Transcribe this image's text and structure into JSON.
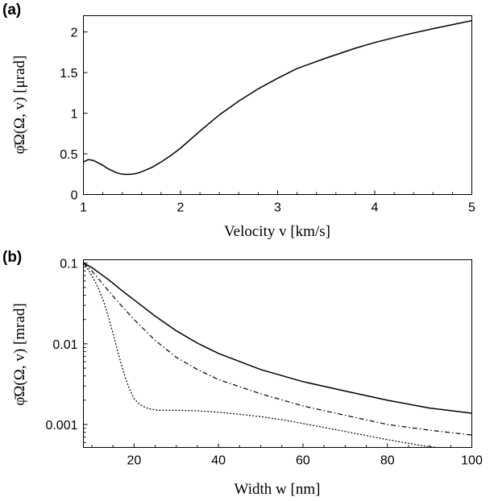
{
  "chart_data": [
    {
      "type": "line",
      "panel_label": "(a)",
      "xlabel": "Velocity v [km/s]",
      "ylabel": "φ̄Ω(Ω, v) [μrad]",
      "xlim": [
        1,
        5
      ],
      "ylim": [
        0,
        2.2
      ],
      "x_ticks": [
        1,
        2,
        3,
        4,
        5
      ],
      "x_tick_labels": [
        "1",
        "2",
        "3",
        "4",
        "5"
      ],
      "y_ticks": [
        0,
        0.5,
        1,
        1.5,
        2
      ],
      "y_tick_labels": [
        "0",
        "0.5",
        "1",
        "1.5",
        "2"
      ],
      "series": [
        {
          "style": "solid",
          "x": [
            1.0,
            1.05,
            1.1,
            1.15,
            1.2,
            1.25,
            1.3,
            1.35,
            1.4,
            1.45,
            1.5,
            1.55,
            1.6,
            1.7,
            1.8,
            1.9,
            2.0,
            2.2,
            2.4,
            2.6,
            2.8,
            3.0,
            3.2,
            3.5,
            3.8,
            4.0,
            4.3,
            4.6,
            5.0
          ],
          "y": [
            0.4,
            0.43,
            0.42,
            0.39,
            0.36,
            0.32,
            0.29,
            0.265,
            0.25,
            0.248,
            0.25,
            0.26,
            0.28,
            0.33,
            0.4,
            0.48,
            0.57,
            0.78,
            0.98,
            1.15,
            1.3,
            1.43,
            1.55,
            1.68,
            1.8,
            1.87,
            1.96,
            2.04,
            2.14
          ]
        }
      ]
    },
    {
      "type": "line",
      "panel_label": "(b)",
      "xlabel": "Width w [nm]",
      "ylabel": "φ̄Ω(Ω, v) [mrad]",
      "xlim": [
        8,
        100
      ],
      "ylim": [
        0.00052,
        0.11
      ],
      "yscale": "log",
      "x_ticks": [
        20,
        40,
        60,
        80,
        100
      ],
      "x_tick_labels": [
        "20",
        "40",
        "60",
        "80",
        "100"
      ],
      "y_ticks": [
        0.001,
        0.01,
        0.1
      ],
      "y_tick_labels": [
        "0.001",
        "0.01",
        "0.1"
      ],
      "series": [
        {
          "style": "solid",
          "x": [
            8,
            10,
            12,
            14,
            16,
            18,
            20,
            25,
            30,
            35,
            40,
            50,
            60,
            70,
            80,
            90,
            100
          ],
          "y": [
            0.1,
            0.088,
            0.074,
            0.062,
            0.051,
            0.042,
            0.035,
            0.022,
            0.0145,
            0.0102,
            0.0076,
            0.0048,
            0.0034,
            0.0026,
            0.002,
            0.0016,
            0.00138
          ]
        },
        {
          "style": "dashdot",
          "x": [
            8,
            10,
            12,
            14,
            16,
            18,
            20,
            25,
            30,
            35,
            40,
            50,
            60,
            70,
            80,
            90,
            100
          ],
          "y": [
            0.1,
            0.08,
            0.06,
            0.045,
            0.034,
            0.026,
            0.02,
            0.011,
            0.0068,
            0.0048,
            0.0036,
            0.0024,
            0.0017,
            0.0013,
            0.001,
            0.00085,
            0.00074
          ]
        },
        {
          "style": "dotted",
          "x": [
            8,
            9,
            10,
            11,
            12,
            13,
            14,
            15,
            16,
            17,
            18,
            19,
            20,
            21,
            22,
            23,
            24,
            25,
            26,
            28,
            30,
            35,
            40,
            45,
            50,
            55,
            60,
            70,
            80,
            88,
            94
          ],
          "y": [
            0.1,
            0.085,
            0.07,
            0.056,
            0.043,
            0.031,
            0.021,
            0.0135,
            0.0085,
            0.0055,
            0.0037,
            0.0027,
            0.0021,
            0.00185,
            0.0017,
            0.0016,
            0.00155,
            0.00152,
            0.0015,
            0.0015,
            0.0015,
            0.00148,
            0.00142,
            0.00134,
            0.00125,
            0.00115,
            0.00103,
            0.00082,
            0.00065,
            0.00055,
            0.0005
          ]
        }
      ]
    }
  ]
}
